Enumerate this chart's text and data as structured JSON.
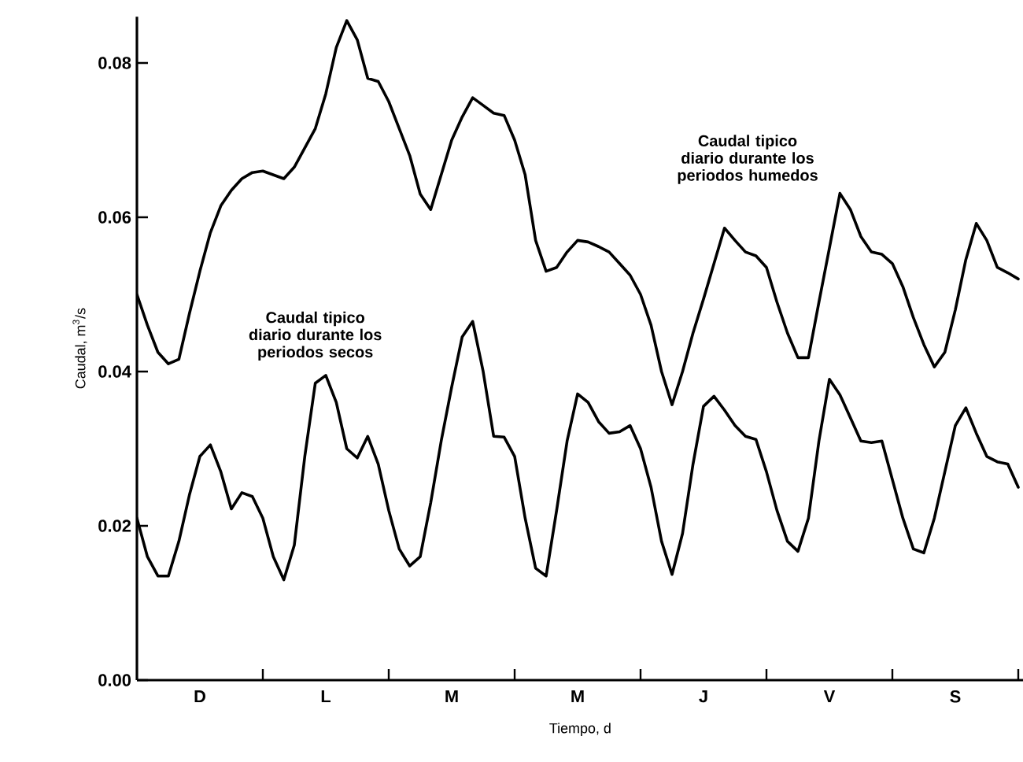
{
  "chart_data": {
    "type": "line",
    "xlabel": "Tiempo, d",
    "ylabel": "Caudal, m$^{3}$/s",
    "categories": [
      null,
      null,
      null,
      null,
      null,
      null,
      "D",
      null,
      null,
      null,
      null,
      null,
      null,
      null,
      null,
      null,
      null,
      null,
      "L",
      null,
      null,
      null,
      null,
      null,
      null,
      null,
      null,
      null,
      null,
      null,
      "M",
      null,
      null,
      null,
      null,
      null,
      null,
      null,
      null,
      null,
      null,
      null,
      "M",
      null,
      null,
      null,
      null,
      null,
      null,
      null,
      null,
      null,
      null,
      null,
      "J",
      null,
      null,
      null,
      null,
      null,
      null,
      null,
      null,
      null,
      null,
      null,
      "V",
      null,
      null,
      null,
      null,
      null,
      null,
      null,
      null,
      null,
      null,
      null,
      "S",
      null,
      null,
      null,
      null,
      null,
      null
    ],
    "ylim": [
      0,
      0.086
    ],
    "yticks": [
      {
        "value": 0,
        "label": "0.00"
      },
      {
        "value": 0.02,
        "label": "0.02"
      },
      {
        "value": 0.04,
        "label": "0.04"
      },
      {
        "value": 0.06,
        "label": "0.06"
      },
      {
        "value": 0.08,
        "label": "0.08"
      }
    ],
    "grid": false,
    "legend": false,
    "marker": "none",
    "line_style": "solid",
    "series": [
      {
        "name": "Caudal tipico diario durante los periodos humedos",
        "color": "#000000",
        "values": [
          0.05,
          0.046,
          0.0425,
          0.041,
          0.0416,
          0.0475,
          0.053,
          0.058,
          0.0615,
          0.0635,
          0.065,
          0.0658,
          0.066,
          0.0655,
          0.065,
          0.0665,
          0.069,
          0.0715,
          0.076,
          0.082,
          0.0855,
          0.083,
          0.078,
          0.0776,
          0.075,
          0.0715,
          0.068,
          0.063,
          0.061,
          0.0655,
          0.07,
          0.073,
          0.0755,
          0.0745,
          0.0735,
          0.0732,
          0.07,
          0.0655,
          0.057,
          0.053,
          0.0535,
          0.0555,
          0.057,
          0.0568,
          0.0562,
          0.0555,
          0.054,
          0.0525,
          0.05,
          0.046,
          0.04,
          0.0357,
          0.04,
          0.045,
          0.0494,
          0.054,
          0.0586,
          0.057,
          0.0555,
          0.055,
          0.0535,
          0.049,
          0.045,
          0.0418,
          0.0418,
          0.049,
          0.056,
          0.0631,
          0.061,
          0.0575,
          0.0555,
          0.0552,
          0.054,
          0.051,
          0.047,
          0.0435,
          0.0406,
          0.0425,
          0.048,
          0.0545,
          0.0592,
          0.057,
          0.0535,
          0.0528,
          0.052
        ]
      },
      {
        "name": "Caudal tipico diario durante los periodos secos",
        "color": "#000000",
        "values": [
          0.021,
          0.016,
          0.0135,
          0.0135,
          0.018,
          0.024,
          0.029,
          0.0305,
          0.027,
          0.0222,
          0.0243,
          0.0238,
          0.021,
          0.016,
          0.013,
          0.0175,
          0.029,
          0.0385,
          0.0395,
          0.036,
          0.03,
          0.0288,
          0.0316,
          0.028,
          0.022,
          0.017,
          0.0148,
          0.016,
          0.023,
          0.031,
          0.038,
          0.0445,
          0.0465,
          0.04,
          0.0316,
          0.0315,
          0.029,
          0.021,
          0.0145,
          0.0135,
          0.022,
          0.031,
          0.0371,
          0.036,
          0.0335,
          0.032,
          0.0322,
          0.033,
          0.03,
          0.025,
          0.018,
          0.0137,
          0.019,
          0.028,
          0.0355,
          0.0368,
          0.035,
          0.033,
          0.0316,
          0.0312,
          0.027,
          0.022,
          0.018,
          0.0167,
          0.021,
          0.031,
          0.039,
          0.037,
          0.034,
          0.031,
          0.0308,
          0.031,
          0.026,
          0.021,
          0.017,
          0.0165,
          0.021,
          0.027,
          0.033,
          0.0353,
          0.032,
          0.029,
          0.0283,
          0.028,
          0.025
        ]
      }
    ]
  }
}
